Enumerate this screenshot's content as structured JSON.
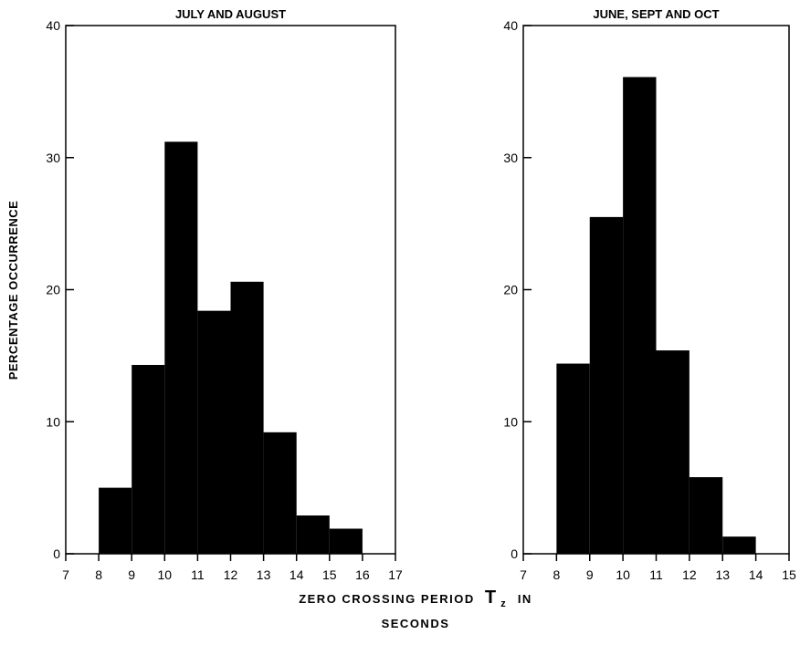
{
  "figure": {
    "ylabel": "PERCENTAGE OCCURRENCE",
    "xlabel_line1": "ZERO CROSSING PERIOD",
    "xlabel_symbol": "T",
    "xlabel_subscript": "z",
    "xlabel_tail": "IN",
    "xlabel_line2": "SECONDS"
  },
  "chart_data": [
    {
      "type": "bar",
      "title": "JULY AND AUGUST",
      "xlabel": "ZERO CROSSING PERIOD Tz IN SECONDS",
      "ylabel": "PERCENTAGE OCCURRENCE",
      "xlim": [
        7,
        17
      ],
      "ylim": [
        0,
        40
      ],
      "xticks": [
        7,
        8,
        9,
        10,
        11,
        12,
        13,
        14,
        15,
        16,
        17
      ],
      "yticks": [
        0,
        10,
        20,
        30,
        40
      ],
      "bins": [
        {
          "from": 8,
          "to": 9,
          "value": 5
        },
        {
          "from": 9,
          "to": 10,
          "value": 14.3
        },
        {
          "from": 10,
          "to": 11,
          "value": 31.2
        },
        {
          "from": 11,
          "to": 12,
          "value": 18.4
        },
        {
          "from": 12,
          "to": 13,
          "value": 20.6
        },
        {
          "from": 13,
          "to": 14,
          "value": 9.2
        },
        {
          "from": 14,
          "to": 15,
          "value": 2.9
        },
        {
          "from": 15,
          "to": 16,
          "value": 1.9
        }
      ],
      "bar_color": "#000000"
    },
    {
      "type": "bar",
      "title": "JUNE, SEPT AND OCT",
      "xlabel": "ZERO CROSSING PERIOD Tz IN SECONDS",
      "ylabel": "",
      "xlim": [
        7,
        15
      ],
      "ylim": [
        0,
        40
      ],
      "xticks": [
        7,
        8,
        9,
        10,
        11,
        12,
        13,
        14,
        15
      ],
      "yticks": [
        0,
        10,
        20,
        30,
        40
      ],
      "bins": [
        {
          "from": 8,
          "to": 9,
          "value": 14.4
        },
        {
          "from": 9,
          "to": 10,
          "value": 25.5
        },
        {
          "from": 10,
          "to": 11,
          "value": 36.1
        },
        {
          "from": 11,
          "to": 12,
          "value": 15.4
        },
        {
          "from": 12,
          "to": 13,
          "value": 5.8
        },
        {
          "from": 13,
          "to": 14,
          "value": 1.3
        }
      ],
      "bar_color": "#000000"
    }
  ]
}
